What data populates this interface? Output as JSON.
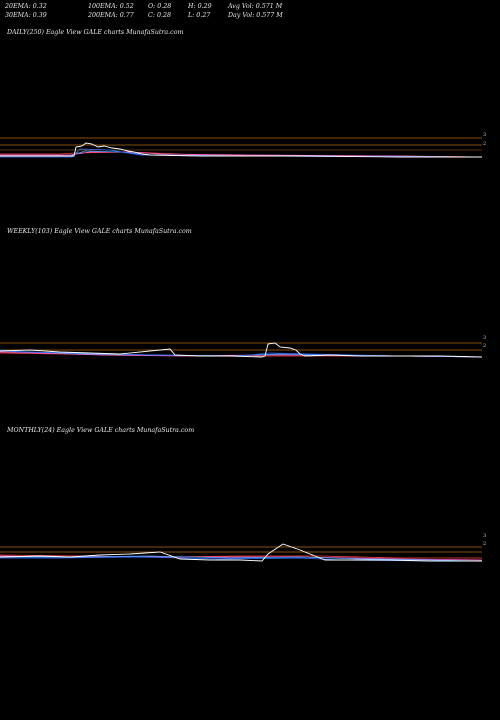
{
  "header": {
    "stats": [
      [
        "20EMA: 0.32",
        "100EMA: 0.52",
        "O: 0.28",
        "H: 0.29",
        "Avg Vol: 0.571 M"
      ],
      [
        "30EMA: 0.39",
        "200EMA: 0.77",
        "C: 0.28",
        "L: 0.27",
        "Day Vol: 0.577 M"
      ]
    ]
  },
  "panels": [
    {
      "label": "DAILY(250) Eagle  View  GALE charts MunafaSutra.com",
      "ylabels": [
        "3",
        "2"
      ]
    },
    {
      "label": "WEEKLY(103) Eagle  View  GALE charts MunafaSutra.com",
      "ylabels": [
        "3",
        "2"
      ]
    },
    {
      "label": "MONTHLY(24) Eagle  View  GALE charts MunafaSutra.com",
      "ylabels": [
        "3",
        "2"
      ]
    }
  ],
  "chart_data": [
    {
      "type": "line",
      "title": "DAILY(250) Eagle  View  GALE charts MunafaSutra.com",
      "y_scale": "log",
      "reference_levels": [
        3,
        2
      ],
      "colors": {
        "price": "#ffffff",
        "ema20": "#2f6fff",
        "ema30": "#3fa0ff",
        "ema100": "#ff66cc",
        "ema200": "#ff4040",
        "levels": "#c07010"
      },
      "series": []
    },
    {
      "type": "line",
      "title": "WEEKLY(103) Eagle  View  GALE charts MunafaSutra.com",
      "y_scale": "log",
      "reference_levels": [
        3,
        2
      ],
      "series": []
    },
    {
      "type": "line",
      "title": "MONTHLY(24) Eagle  View  GALE charts MunafaSutra.com",
      "y_scale": "log",
      "reference_levels": [
        3,
        2
      ],
      "series": []
    }
  ]
}
